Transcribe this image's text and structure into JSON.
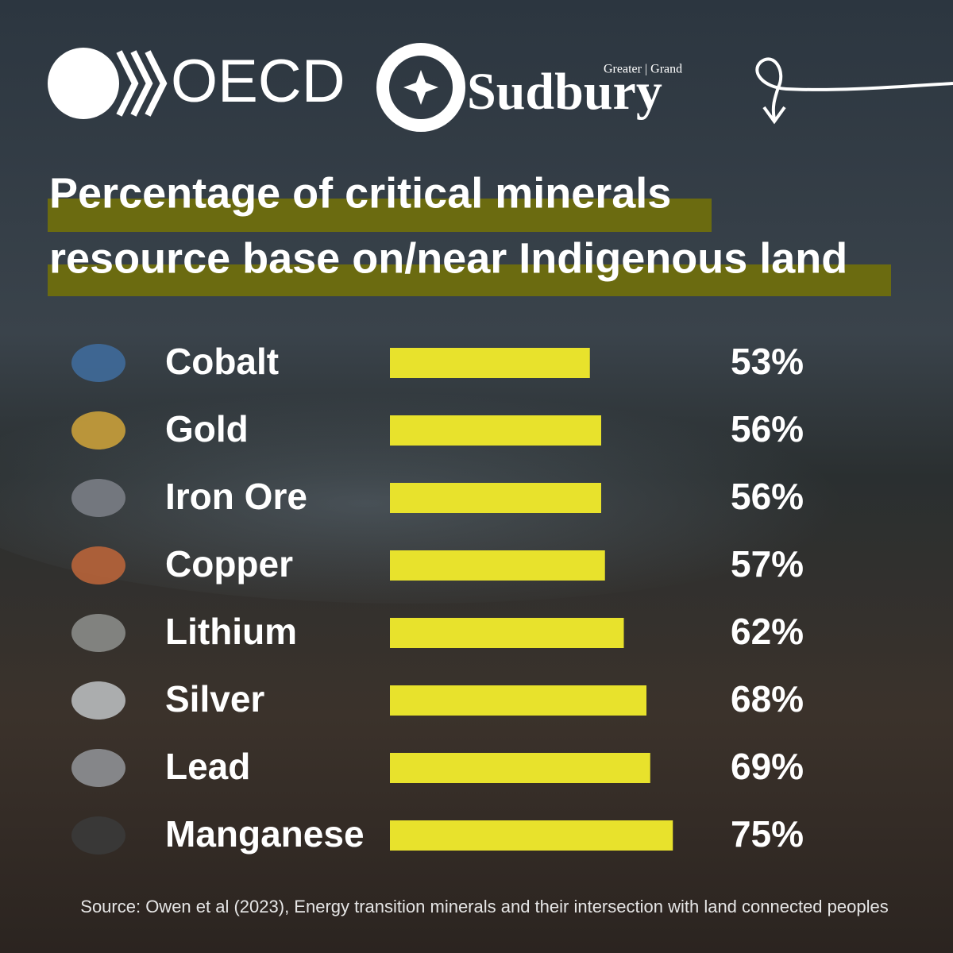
{
  "logos": {
    "oecd": "OECD",
    "sudbury_top": "Greater | Grand",
    "sudbury": "Sudbury"
  },
  "chart_data": {
    "type": "bar",
    "orientation": "horizontal",
    "title_lines": [
      "Percentage of critical minerals",
      "resource base on/near Indigenous land"
    ],
    "categories": [
      "Cobalt",
      "Gold",
      "Iron Ore",
      "Copper",
      "Lithium",
      "Silver",
      "Lead",
      "Manganese"
    ],
    "values": [
      53,
      56,
      56,
      57,
      62,
      68,
      69,
      75
    ],
    "value_labels": [
      "53%",
      "56%",
      "56%",
      "57%",
      "62%",
      "68%",
      "69%",
      "75%"
    ],
    "color": "#e8e22c",
    "source": "Source: Owen et al (2023), Energy transition minerals and their intersection with land connected peoples"
  }
}
